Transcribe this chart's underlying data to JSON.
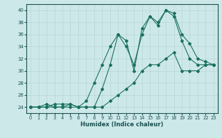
{
  "xlabel": "Humidex (Indice chaleur)",
  "ylabel": "",
  "background_color": "#cde8e8",
  "grid_color": "#b8d4d4",
  "line_color": "#1a7060",
  "xlim": [
    -0.5,
    23.5
  ],
  "ylim": [
    23,
    41
  ],
  "yticks": [
    24,
    26,
    28,
    30,
    32,
    34,
    36,
    38,
    40
  ],
  "xticks": [
    0,
    1,
    2,
    3,
    4,
    5,
    6,
    7,
    8,
    9,
    10,
    11,
    12,
    13,
    14,
    15,
    16,
    17,
    18,
    19,
    20,
    21,
    22,
    23
  ],
  "series": [
    [
      24,
      24,
      24,
      24,
      24,
      24,
      24,
      24,
      24,
      24,
      25,
      26,
      27,
      28,
      30,
      31,
      31,
      32,
      33,
      30,
      30,
      30,
      31,
      31
    ],
    [
      24,
      24,
      24,
      24.5,
      24.5,
      24.5,
      24,
      24,
      24,
      27,
      31,
      36,
      34,
      31,
      36,
      39,
      37.5,
      40,
      39.5,
      36,
      34.5,
      32,
      31.5,
      31
    ],
    [
      24,
      24,
      24.5,
      24,
      24,
      24.5,
      24,
      25,
      28,
      31,
      34,
      36,
      35,
      30,
      37,
      39,
      38,
      40,
      39,
      35,
      32,
      31,
      31,
      31
    ]
  ]
}
